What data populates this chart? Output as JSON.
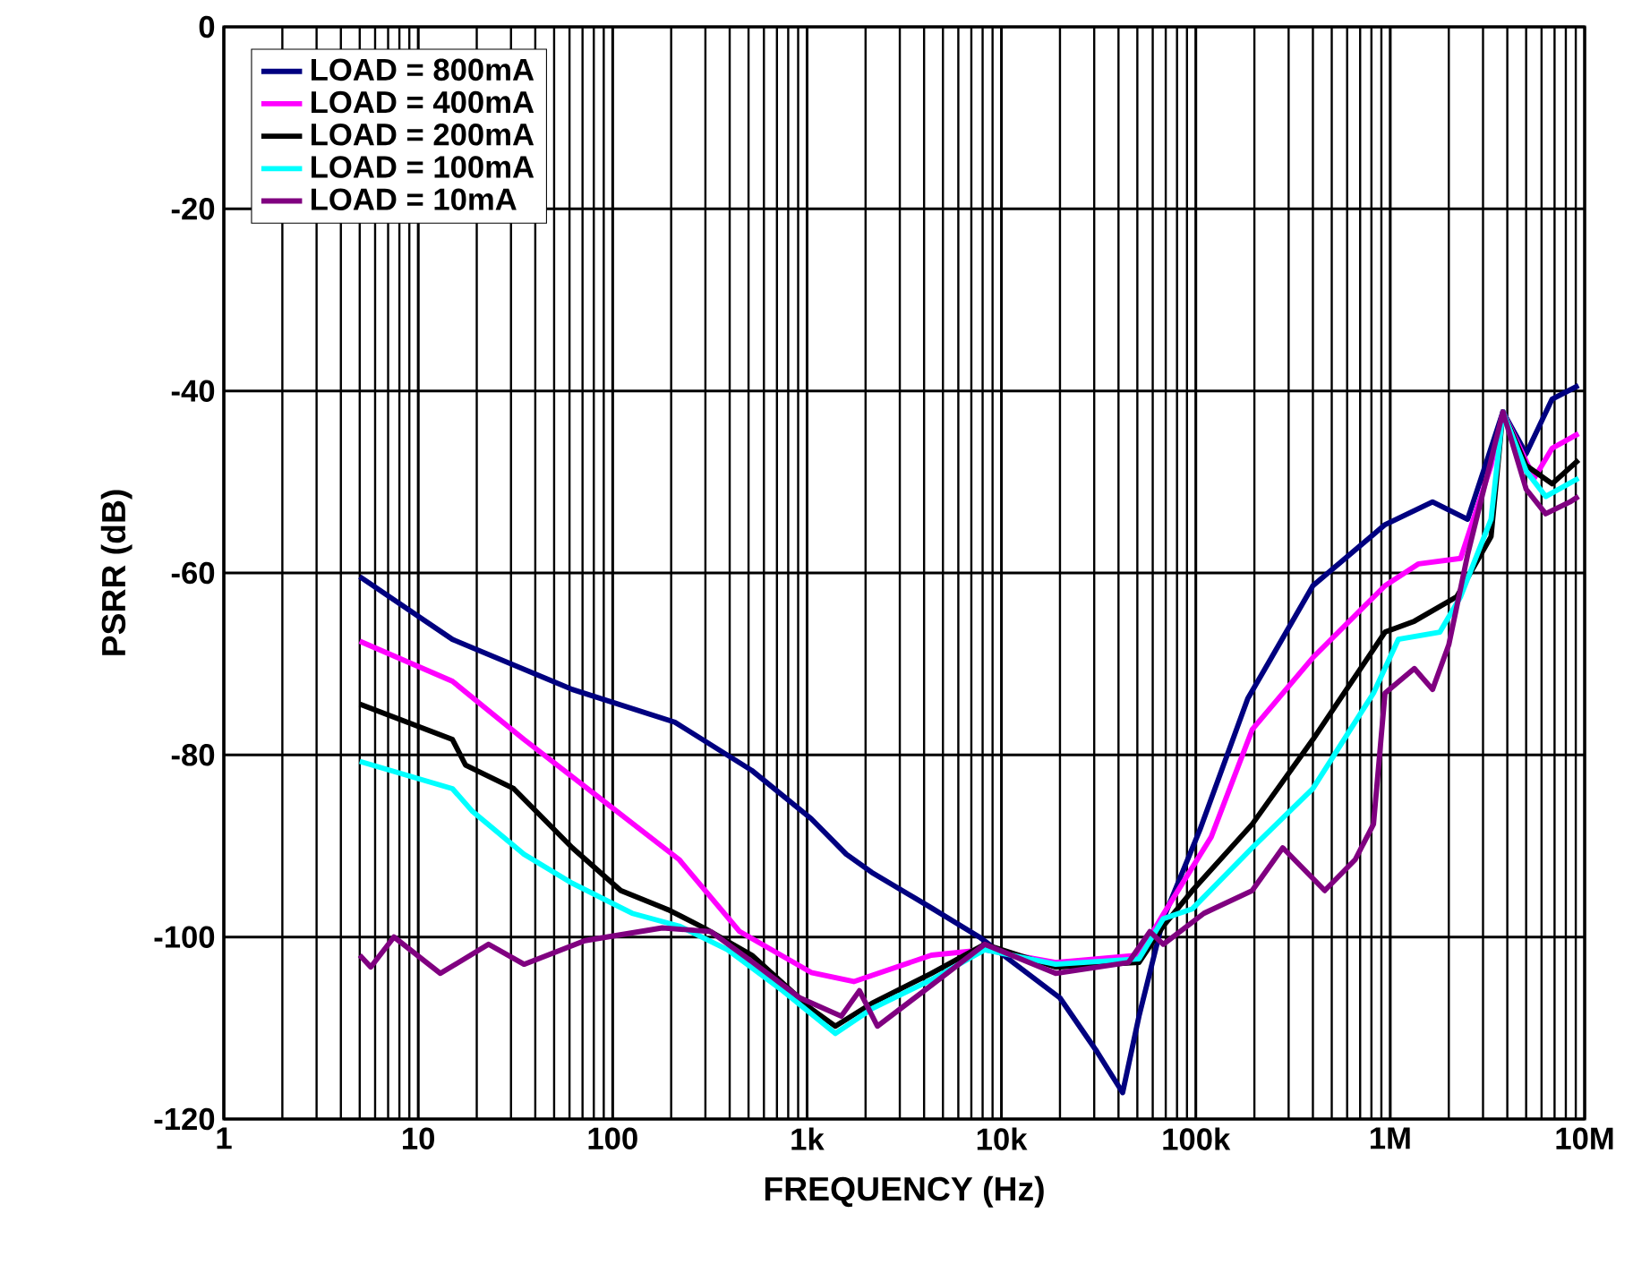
{
  "chart_data": {
    "type": "line",
    "xlabel": "FREQUENCY (Hz)",
    "ylabel": "PSRR (dB)",
    "log": "x",
    "grid": true,
    "legend": "top left",
    "marker": "none",
    "line_style": "solid",
    "xlim": [
      1,
      10000000
    ],
    "ylim": [
      -120,
      0
    ],
    "xticks": [
      1,
      10,
      100,
      {
        "value": 1000,
        "label": "1k"
      },
      {
        "value": 10000,
        "label": "10k"
      },
      {
        "value": 100000,
        "label": "100k"
      },
      {
        "value": 1000000,
        "label": "1M"
      },
      {
        "value": 10000000,
        "label": "10M"
      }
    ],
    "yticks": [
      -120,
      -100,
      -80,
      -60,
      -40,
      -20,
      0
    ],
    "series": [
      {
        "name": "LOAD = 800mA",
        "color": "#000080",
        "x": [
          5,
          15,
          62,
          209,
          520,
          1050,
          1590,
          2150,
          4360,
          7700,
          20000,
          31000,
          42000,
          51000,
          68000,
          105000,
          185000,
          245000,
          400000,
          940000,
          1650000,
          2500000,
          3800000,
          5000000,
          6800000,
          9300000
        ],
        "values": [
          -60.4,
          -67.3,
          -72.8,
          -76.4,
          -81.7,
          -87.0,
          -90.9,
          -92.9,
          -96.8,
          -100,
          -106.7,
          -112.6,
          -117.1,
          -108.7,
          -98,
          -88.2,
          -73.8,
          -69.3,
          -61.4,
          -54.7,
          -52.2,
          -54.1,
          -42.3,
          -46.9,
          -40.9,
          -39.4
        ]
      },
      {
        "name": "LOAD = 400mA",
        "color": "#ff00ff",
        "x": [
          5,
          15,
          35,
          89,
          220,
          450,
          1050,
          1740,
          4360,
          8200,
          19000,
          51000,
          68000,
          120000,
          195000,
          400000,
          940000,
          1400000,
          2300000,
          3300000,
          3800000,
          5500000,
          6800000,
          9300000
        ],
        "values": [
          -67.5,
          -71.9,
          -78.3,
          -85,
          -91.5,
          -99.4,
          -103.9,
          -104.9,
          -102,
          -101.4,
          -102.8,
          -102,
          -97.5,
          -89,
          -77.2,
          -69.3,
          -61.4,
          -59,
          -58.4,
          -48.2,
          -42.3,
          -49.6,
          -46.3,
          -44.7
        ]
      },
      {
        "name": "LOAD = 200mA",
        "color": "#000000",
        "x": [
          5,
          15,
          17.5,
          31,
          62,
          110,
          193,
          295,
          520,
          1050,
          1400,
          2150,
          4360,
          8200,
          19000,
          51000,
          68000,
          96000,
          195000,
          400000,
          940000,
          1330000,
          2200000,
          3300000,
          3800000,
          5000000,
          6800000,
          9300000
        ],
        "values": [
          -74.4,
          -78.3,
          -81.1,
          -83.7,
          -90.2,
          -94.9,
          -97,
          -99,
          -102,
          -107.9,
          -109.8,
          -107.3,
          -104,
          -100.8,
          -103.3,
          -102.8,
          -98.8,
          -94.9,
          -87.6,
          -78.3,
          -66.5,
          -65.3,
          -62.6,
          -56,
          -42.3,
          -48.2,
          -50.2,
          -47.6
        ]
      },
      {
        "name": "LOAD = 100mA",
        "color": "#00ffff",
        "x": [
          5,
          15,
          19,
          35,
          62,
          126,
          220,
          390,
          750,
          1400,
          2150,
          4360,
          8200,
          19000,
          51000,
          68000,
          96000,
          195000,
          400000,
          820000,
          1100000,
          1800000,
          2300000,
          3300000,
          3800000,
          5000000,
          6300000,
          9300000
        ],
        "values": [
          -80.7,
          -83.7,
          -86.2,
          -90.9,
          -94.1,
          -97.4,
          -98.8,
          -101.4,
          -105.9,
          -110.6,
          -107.9,
          -104.7,
          -101.4,
          -103,
          -102.4,
          -98,
          -96.9,
          -90.2,
          -83.7,
          -73.2,
          -67.3,
          -66.5,
          -62.6,
          -54.1,
          -42.3,
          -48.8,
          -51.6,
          -49.6
        ]
      },
      {
        "name": "LOAD = 10mA",
        "color": "#800080",
        "x": [
          5,
          5.7,
          7.5,
          13,
          23,
          35,
          72,
          180,
          320,
          520,
          920,
          1500,
          1860,
          2300,
          4360,
          8200,
          19000,
          45000,
          58000,
          68000,
          110000,
          195000,
          280000,
          460000,
          660000,
          820000,
          940000,
          1330000,
          1650000,
          2000000,
          2500000,
          3800000,
          5000000,
          6300000,
          8400000,
          9300000
        ],
        "values": [
          -102,
          -103.3,
          -100,
          -104,
          -100.8,
          -103,
          -100.4,
          -99,
          -99.4,
          -102.7,
          -106.7,
          -108.7,
          -105.9,
          -109.8,
          -105.3,
          -100.8,
          -104,
          -102.8,
          -99.4,
          -100.8,
          -97.4,
          -94.9,
          -90.2,
          -94.9,
          -91.5,
          -87.6,
          -73.2,
          -70.5,
          -72.8,
          -67.9,
          -58,
          -42.3,
          -50.8,
          -53.5,
          -52.2,
          -51.6
        ]
      }
    ]
  }
}
